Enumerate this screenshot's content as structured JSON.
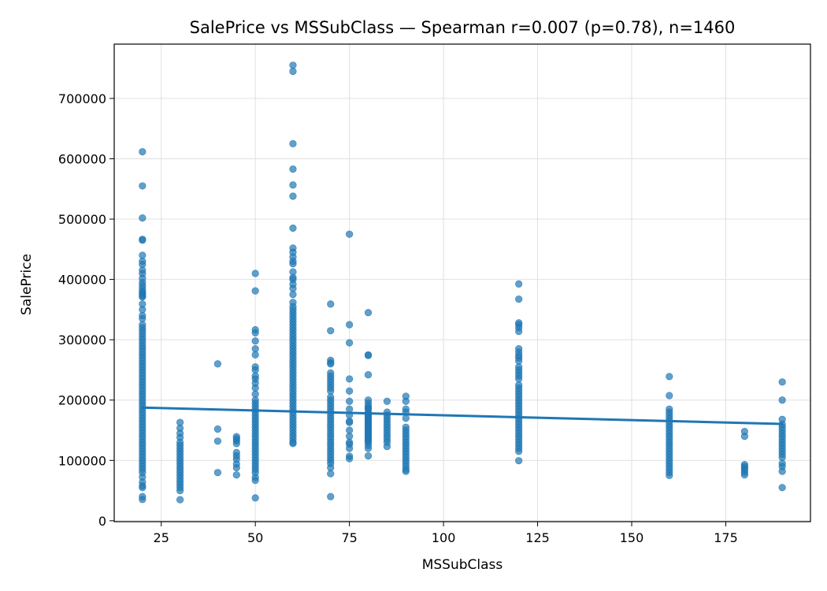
{
  "chart_data": {
    "type": "scatter",
    "title": "SalePrice vs MSSubClass — Spearman r=0.007 (p=0.78), n=1460",
    "xlabel": "MSSubClass",
    "ylabel": "SalePrice",
    "xlim": [
      12.5,
      197.5
    ],
    "ylim": [
      -1500,
      790000
    ],
    "grid": true,
    "x_ticks": [
      25,
      50,
      75,
      100,
      125,
      150,
      175
    ],
    "y_ticks": [
      0,
      100000,
      200000,
      300000,
      400000,
      500000,
      600000,
      700000
    ],
    "point_color": "#1f77b4",
    "line_color": "#1f77b4",
    "series": [
      {
        "groups": [
          {
            "x": 20,
            "values": [
              611657,
              555000,
              501837,
              466500,
              465000,
              440000,
              430000,
              425000,
              415298,
              410000,
              402000,
              395000,
              390000,
              385000,
              380000,
              378500,
              375000,
              372500,
              370878,
              359100,
              350000,
              340000,
              335000,
              325000,
              320000,
              315000,
              310000,
              305000,
              300000,
              295000,
              290000,
              285000,
              280000,
              275000,
              270000,
              265000,
              260000,
              255000,
              250000,
              245000,
              240000,
              235000,
              230000,
              225000,
              220000,
              215000,
              210000,
              205000,
              200000,
              195000,
              190000,
              185000,
              180000,
              175000,
              170000,
              165000,
              160000,
              155000,
              150000,
              145000,
              140000,
              135000,
              130000,
              125000,
              120000,
              115000,
              110000,
              105000,
              100000,
              95000,
              90000,
              85000,
              80000,
              72500,
              64000,
              58000,
              55000,
              40000,
              35311
            ]
          },
          {
            "x": 30,
            "values": [
              163000,
              153500,
              145000,
              138000,
              130000,
              125000,
              120000,
              115000,
              110000,
              105000,
              100000,
              95000,
              90000,
              85000,
              80000,
              75000,
              70000,
              65000,
              60000,
              55000,
              50000,
              34900
            ]
          },
          {
            "x": 40,
            "values": [
              260000,
              152000,
              132000,
              79900
            ]
          },
          {
            "x": 45,
            "values": [
              139400,
              136000,
              132500,
              128000,
              113000,
              107500,
              102000,
              94000,
              88000,
              76000
            ]
          },
          {
            "x": 50,
            "values": [
              410000,
              381000,
              316600,
              311500,
              298000,
              285000,
              275000,
              255000,
              250000,
              240000,
              235000,
              228000,
              220000,
              210000,
              200000,
              195000,
              190000,
              185000,
              180000,
              175000,
              170000,
              165000,
              160000,
              155000,
              150000,
              145000,
              140000,
              135000,
              130000,
              125000,
              120000,
              115000,
              110000,
              105000,
              100000,
              95000,
              90000,
              85000,
              80000,
              72000,
              67000,
              37900
            ]
          },
          {
            "x": 60,
            "values": [
              755000,
              745000,
              625000,
              582933,
              556581,
              538000,
              485000,
              451950,
              445000,
              437154,
              430000,
              426000,
              412500,
              403000,
              400000,
              392000,
              385000,
              375000,
              361919,
              355000,
              350000,
              345000,
              340000,
              335000,
              330000,
              325000,
              320000,
              315000,
              310000,
              305000,
              300000,
              295000,
              290000,
              285000,
              280000,
              275000,
              270000,
              265000,
              260000,
              255000,
              250000,
              245000,
              240000,
              235000,
              230000,
              225000,
              220000,
              215000,
              210000,
              205000,
              200000,
              195000,
              190000,
              185000,
              180000,
              175000,
              170000,
              165000,
              160000,
              155000,
              150000,
              145000,
              140000,
              135000,
              130000,
              128000
            ]
          },
          {
            "x": 70,
            "values": [
              359100,
              315000,
              266000,
              262000,
              260000,
              245000,
              240000,
              235000,
              230000,
              225000,
              220000,
              215000,
              205000,
              200000,
              195000,
              190000,
              185000,
              180000,
              175000,
              170000,
              165000,
              160000,
              155000,
              150000,
              145000,
              140000,
              135000,
              130000,
              125000,
              120000,
              115000,
              110000,
              105000,
              100000,
              95000,
              88000,
              78000,
              40000
            ]
          },
          {
            "x": 75,
            "values": [
              475000,
              325000,
              295000,
              235000,
              215000,
              198000,
              185000,
              175000,
              165000,
              163000,
              150000,
              140000,
              130000,
              127000,
              120000,
              107000,
              103000
            ]
          },
          {
            "x": 80,
            "values": [
              345000,
              275000,
              274000,
              242000,
              200000,
              195000,
              190000,
              187000,
              185000,
              180000,
              178000,
              175000,
              172000,
              170000,
              167000,
              165000,
              162000,
              160000,
              157000,
              155000,
              152000,
              150000,
              147000,
              145000,
              142000,
              140000,
              137000,
              135000,
              132000,
              130000,
              125000,
              120000,
              107500
            ]
          },
          {
            "x": 85,
            "values": [
              198000,
              180000,
              175000,
              170000,
              165000,
              160000,
              155000,
              150000,
              145000,
              140000,
              135000,
              130000,
              123000
            ]
          },
          {
            "x": 90,
            "values": [
              206300,
              198000,
              185000,
              180000,
              170000,
              155000,
              150000,
              145000,
              140000,
              135000,
              130000,
              125000,
              120000,
              115000,
              110000,
              105000,
              100000,
              95000,
              90000,
              85000,
              82000
            ]
          },
          {
            "x": 120,
            "values": [
              392500,
              367294,
              328000,
              325000,
              320000,
              314000,
              285000,
              279500,
              274000,
              270000,
              265000,
              255000,
              250000,
              245000,
              240000,
              235000,
              225000,
              220000,
              215000,
              210000,
              205000,
              200000,
              195000,
              190000,
              185000,
              180000,
              175000,
              170000,
              165000,
              160000,
              155000,
              150000,
              145000,
              140000,
              135000,
              130000,
              125000,
              120000,
              115000,
              99500
            ]
          },
          {
            "x": 160,
            "values": [
              239000,
              207500,
              185000,
              180000,
              175000,
              170000,
              165000,
              160000,
              155000,
              150000,
              145000,
              140000,
              135000,
              130000,
              125000,
              120000,
              115000,
              110000,
              105000,
              100000,
              95000,
              90000,
              85000,
              80000,
              75000
            ]
          },
          {
            "x": 180,
            "values": [
              148000,
              140000,
              93000,
              90000,
              87000,
              84000,
              80000,
              76000
            ]
          },
          {
            "x": 190,
            "values": [
              230000,
              200000,
              168000,
              160000,
              155000,
              150000,
              145000,
              140000,
              135000,
              130000,
              125000,
              120000,
              115000,
              110000,
              105000,
              95000,
              90000,
              82000,
              55000
            ]
          }
        ]
      }
    ],
    "trendline": {
      "x": [
        20,
        190
      ],
      "y": [
        187500,
        160500
      ]
    }
  }
}
